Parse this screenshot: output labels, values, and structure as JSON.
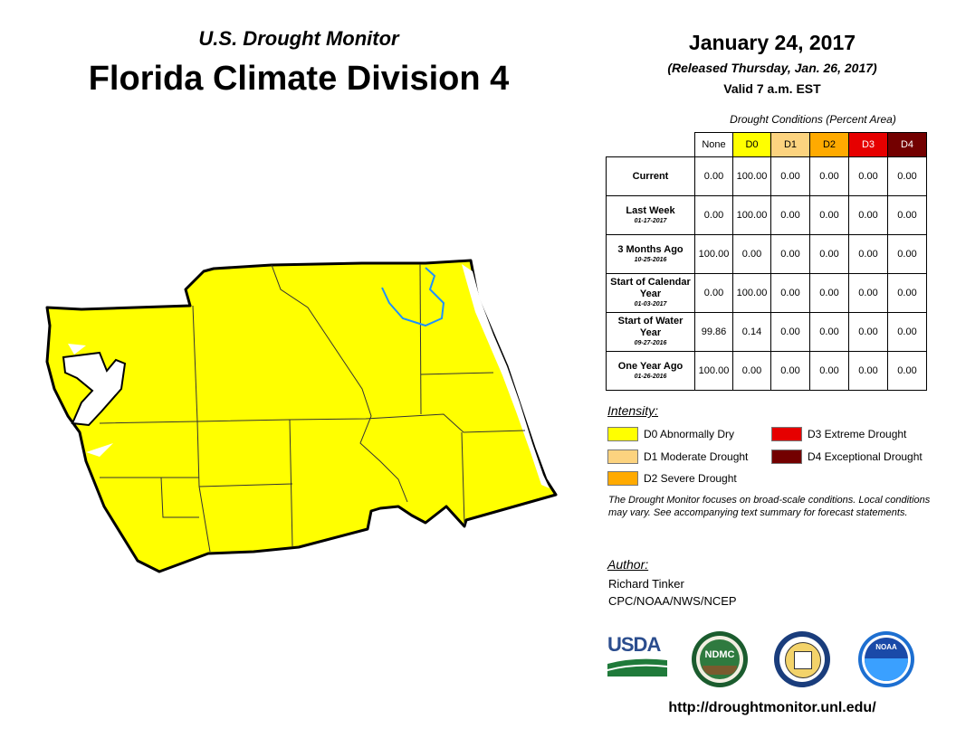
{
  "header": {
    "subtitle": "U.S. Drought Monitor",
    "title": "Florida Climate Division 4",
    "date": "January 24, 2017",
    "released": "(Released Thursday, Jan. 26, 2017)",
    "valid": "Valid 7 a.m. EST"
  },
  "table": {
    "caption": "Drought Conditions (Percent Area)",
    "columns": [
      {
        "label": "None",
        "color": "#ffffff",
        "text_color": "#000000"
      },
      {
        "label": "D0",
        "color": "#ffff00",
        "text_color": "#000000"
      },
      {
        "label": "D1",
        "color": "#fcd37f",
        "text_color": "#000000"
      },
      {
        "label": "D2",
        "color": "#ffaa00",
        "text_color": "#000000"
      },
      {
        "label": "D3",
        "color": "#e60000",
        "text_color": "#ffffff"
      },
      {
        "label": "D4",
        "color": "#730000",
        "text_color": "#ffffff"
      }
    ],
    "rows": [
      {
        "label": "Current",
        "date": "",
        "values": [
          "0.00",
          "100.00",
          "0.00",
          "0.00",
          "0.00",
          "0.00"
        ]
      },
      {
        "label": "Last Week",
        "date": "01-17-2017",
        "values": [
          "0.00",
          "100.00",
          "0.00",
          "0.00",
          "0.00",
          "0.00"
        ]
      },
      {
        "label": "3 Months Ago",
        "date": "10-25-2016",
        "values": [
          "100.00",
          "0.00",
          "0.00",
          "0.00",
          "0.00",
          "0.00"
        ]
      },
      {
        "label": "Start of Calendar Year",
        "date": "01-03-2017",
        "values": [
          "0.00",
          "100.00",
          "0.00",
          "0.00",
          "0.00",
          "0.00"
        ]
      },
      {
        "label": "Start of Water Year",
        "date": "09-27-2016",
        "values": [
          "99.86",
          "0.14",
          "0.00",
          "0.00",
          "0.00",
          "0.00"
        ]
      },
      {
        "label": "One Year Ago",
        "date": "01-26-2016",
        "values": [
          "100.00",
          "0.00",
          "0.00",
          "0.00",
          "0.00",
          "0.00"
        ]
      }
    ]
  },
  "legend": {
    "label": "Intensity:",
    "items": [
      {
        "text": "D0 Abnormally Dry",
        "color": "#ffff00"
      },
      {
        "text": "D1 Moderate Drought",
        "color": "#fcd37f"
      },
      {
        "text": "D2 Severe Drought",
        "color": "#ffaa00"
      },
      {
        "text": "D3 Extreme Drought",
        "color": "#e60000"
      },
      {
        "text": "D4 Exceptional Drought",
        "color": "#730000"
      }
    ]
  },
  "note": "The Drought Monitor focuses on broad-scale conditions. Local conditions may vary. See accompanying text summary for forecast statements.",
  "author": {
    "label": "Author:",
    "name": "Richard Tinker",
    "org": "CPC/NOAA/NWS/NCEP"
  },
  "logos": {
    "usda": "USDA",
    "ndmc": "NDMC",
    "noaa": "NOAA"
  },
  "map": {
    "fill_color": "#ffff00",
    "water_color": "#ffffff",
    "river_color": "#1e90ff",
    "category": "D0"
  },
  "url": "http://droughtmonitor.unl.edu/"
}
